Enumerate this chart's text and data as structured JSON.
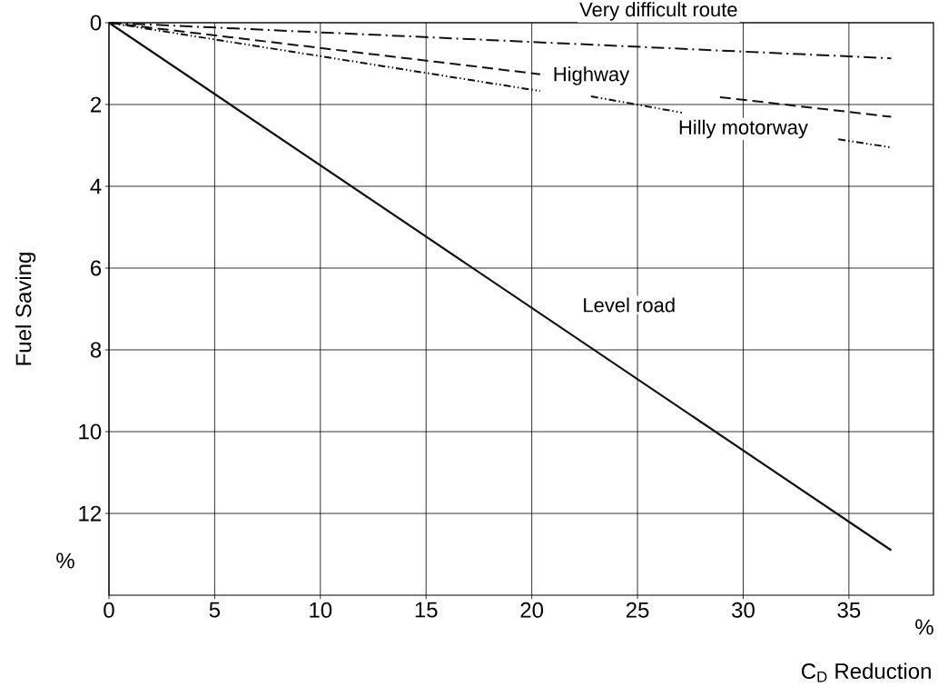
{
  "chart_data": {
    "type": "line",
    "xlabel": "C$_{D}$ Reduction",
    "ylabel": "Fuel Saving",
    "xlim": [
      0,
      39
    ],
    "ylim": [
      14,
      0
    ],
    "xticks": [
      0,
      5,
      10,
      15,
      20,
      25,
      30,
      35
    ],
    "yticks": [
      0,
      2,
      4,
      6,
      8,
      10,
      12
    ],
    "grid": true,
    "marker": "none",
    "series": [
      {
        "name": "Very difficult route",
        "color": "#111111",
        "line_style": "dashdot",
        "x": [
          0,
          37
        ],
        "values": [
          0,
          0.87
        ]
      },
      {
        "name": "Highway",
        "color": "#111111",
        "line_style": "dashed",
        "x": [
          0,
          20.4,
          24,
          28.9,
          37
        ],
        "values": [
          0,
          1.26,
          null,
          1.82,
          2.3
        ]
      },
      {
        "name": "Hilly motorway",
        "color": "#111111",
        "line_style": "dotted",
        "x": [
          0,
          20.4,
          21,
          22.8,
          27.1,
          30,
          34.5,
          37
        ],
        "values": [
          0,
          1.67,
          null,
          1.8,
          2.2,
          null,
          2.85,
          3.05
        ]
      },
      {
        "name": "Level road",
        "color": "#111111",
        "line_style": "solid",
        "x": [
          0,
          37
        ],
        "values": [
          0,
          12.9
        ]
      }
    ],
    "annotations": [
      "%",
      "%"
    ]
  }
}
